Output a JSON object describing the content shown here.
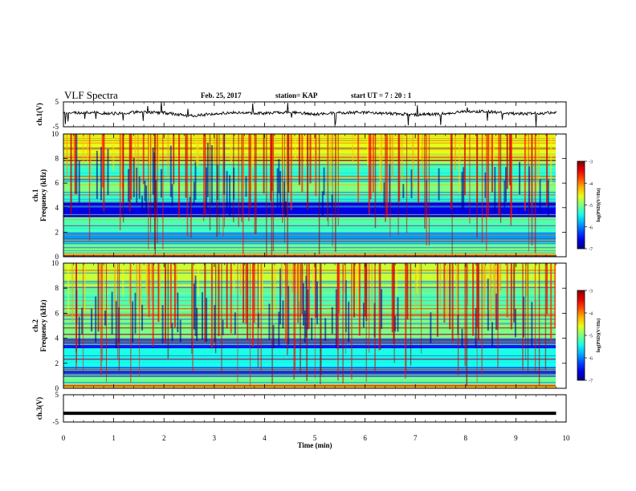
{
  "header": {
    "title": "VLF Spectra",
    "date": "Feb. 25, 2017",
    "station": "station= KAP",
    "start": "start  UT  =   7 : 20 : 1"
  },
  "chart_data": [
    {
      "type": "line",
      "panel": "waveform-ch1",
      "ylabel": "ch.1(V)",
      "ylim": [
        -5,
        5
      ],
      "yticks": [
        "5",
        "-5"
      ],
      "xlim": [
        0,
        10
      ],
      "x_unit": "min",
      "x": [
        0,
        0.5,
        1,
        1.5,
        2,
        2.5,
        3,
        3.5,
        4,
        4.5,
        5,
        5.5,
        6,
        6.5,
        7,
        7.5,
        8,
        8.5,
        9,
        9.5,
        9.8
      ],
      "y": [
        0.5,
        0.8,
        0.3,
        0.9,
        0.6,
        -0.6,
        0.2,
        0.7,
        0.4,
        0.9,
        0.1,
        0.6,
        0.8,
        0.3,
        -0.2,
        0.2,
        1.2,
        1.0,
        0.2,
        0.3,
        1.0
      ],
      "color": "#000000"
    },
    {
      "type": "heatmap",
      "panel": "spectrogram-ch1",
      "ylabel_top": "ch.1",
      "ylabel": "Frequency (kHz)",
      "ylim": [
        0,
        10
      ],
      "yticks": [
        "0",
        "2",
        "4",
        "6",
        "8",
        "10"
      ],
      "xlim": [
        0,
        9.8
      ],
      "colorbar": {
        "label": "log(PSD)(V²/Hz)",
        "range": [
          -7,
          -3
        ],
        "ticks": [
          "-3",
          "-4",
          "-5",
          "-6",
          "-7"
        ]
      },
      "bands": [
        {
          "fmin": 0,
          "fmax": 0.3,
          "log_psd": -4.2
        },
        {
          "fmin": 0.3,
          "fmax": 1.0,
          "log_psd": -5.0
        },
        {
          "fmin": 1.0,
          "fmax": 2.0,
          "log_psd": -5.9
        },
        {
          "fmin": 2.0,
          "fmax": 3.2,
          "log_psd": -5.2
        },
        {
          "fmin": 3.2,
          "fmax": 4.4,
          "log_psd": -6.6
        },
        {
          "fmin": 4.4,
          "fmax": 5.2,
          "log_psd": -5.3
        },
        {
          "fmin": 5.2,
          "fmax": 6.6,
          "log_psd": -5.0
        },
        {
          "fmin": 6.6,
          "fmax": 7.6,
          "log_psd": -5.3
        },
        {
          "fmin": 7.6,
          "fmax": 10.0,
          "log_psd": -4.6
        }
      ]
    },
    {
      "type": "heatmap",
      "panel": "spectrogram-ch2",
      "ylabel_top": "ch.2",
      "ylabel": "Frequency (kHz)",
      "ylim": [
        0,
        10
      ],
      "yticks": [
        "0",
        "2",
        "4",
        "6",
        "8",
        "10"
      ],
      "xlim": [
        0,
        9.8
      ],
      "colorbar": {
        "label": "log(PSD)(V²/Hz)",
        "range": [
          -7,
          -3
        ],
        "ticks": [
          "-3",
          "-4",
          "-5",
          "-6",
          "-7"
        ]
      },
      "bands": [
        {
          "fmin": 0,
          "fmax": 0.3,
          "log_psd": -4.2
        },
        {
          "fmin": 0.3,
          "fmax": 0.9,
          "log_psd": -5.1
        },
        {
          "fmin": 0.9,
          "fmax": 1.7,
          "log_psd": -6.2
        },
        {
          "fmin": 1.7,
          "fmax": 3.2,
          "log_psd": -5.4
        },
        {
          "fmin": 3.2,
          "fmax": 4.0,
          "log_psd": -6.5
        },
        {
          "fmin": 4.0,
          "fmax": 6.5,
          "log_psd": -5.0
        },
        {
          "fmin": 6.5,
          "fmax": 8.0,
          "log_psd": -5.2
        },
        {
          "fmin": 8.0,
          "fmax": 10.0,
          "log_psd": -4.7
        }
      ]
    },
    {
      "type": "line",
      "panel": "waveform-ch3",
      "ylabel": "ch.3(V)",
      "ylim": [
        -5,
        5
      ],
      "yticks": [
        "5",
        "-5"
      ],
      "xlim": [
        0,
        10
      ],
      "x": [
        0,
        9.8
      ],
      "y": [
        -1.8,
        -1.8
      ],
      "color": "#000000"
    }
  ],
  "x_axis": {
    "label": "Time (min)",
    "ticks": [
      "0",
      "1",
      "2",
      "3",
      "4",
      "5",
      "6",
      "7",
      "8",
      "9",
      "10"
    ]
  }
}
